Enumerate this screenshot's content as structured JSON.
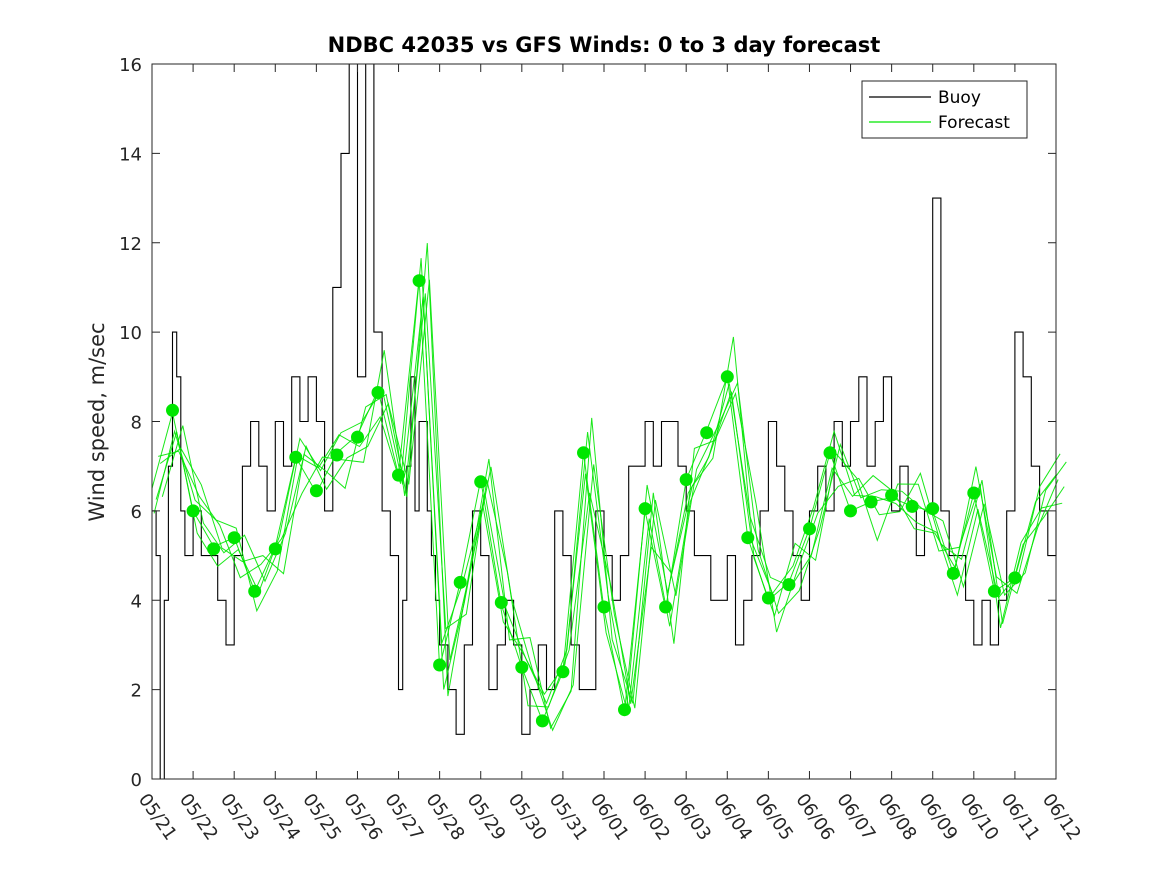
{
  "chart_data": {
    "type": "line",
    "title": "NDBC 42035 vs GFS Winds: 0 to 3 day forecast",
    "xlabel": "",
    "ylabel": "Wind speed, m/sec",
    "ylim": [
      0,
      16
    ],
    "yticks": [
      0,
      2,
      4,
      6,
      8,
      10,
      12,
      14,
      16
    ],
    "xticks": [
      "05/21",
      "05/22",
      "05/23",
      "05/24",
      "05/25",
      "05/26",
      "05/27",
      "05/28",
      "05/29",
      "05/30",
      "05/31",
      "06/01",
      "06/02",
      "06/03",
      "06/04",
      "06/05",
      "06/06",
      "06/07",
      "06/08",
      "06/09",
      "06/10",
      "06/11",
      "06/12"
    ],
    "xlim_days": [
      0,
      22
    ],
    "legend": {
      "position": "top-right",
      "entries": [
        {
          "name": "Buoy",
          "color": "#000000"
        },
        {
          "name": "Forecast",
          "color": "#00e600"
        }
      ]
    },
    "colors": {
      "buoy": "#000000",
      "forecast": "#00e600",
      "analysis_dots": "#00e600"
    },
    "series": [
      {
        "name": "Buoy",
        "x_days": [
          0,
          0.1,
          0.2,
          0.3,
          0.4,
          0.5,
          0.6,
          0.7,
          0.8,
          0.9,
          1.0,
          1.2,
          1.4,
          1.6,
          1.8,
          2.0,
          2.2,
          2.4,
          2.6,
          2.8,
          3.0,
          3.2,
          3.4,
          3.6,
          3.8,
          4.0,
          4.2,
          4.4,
          4.6,
          4.8,
          5.0,
          5.2,
          5.4,
          5.6,
          5.8,
          6.0,
          6.1,
          6.2,
          6.3,
          6.4,
          6.5,
          6.6,
          6.7,
          6.8,
          6.9,
          7.0,
          7.2,
          7.4,
          7.6,
          7.8,
          8.0,
          8.2,
          8.4,
          8.6,
          8.8,
          9.0,
          9.2,
          9.4,
          9.6,
          9.8,
          10.0,
          10.2,
          10.4,
          10.6,
          10.8,
          11.0,
          11.2,
          11.4,
          11.6,
          11.8,
          12.0,
          12.2,
          12.4,
          12.6,
          12.8,
          13.0,
          13.2,
          13.4,
          13.6,
          13.8,
          14.0,
          14.2,
          14.4,
          14.6,
          14.8,
          15.0,
          15.2,
          15.4,
          15.6,
          15.8,
          16.0,
          16.2,
          16.4,
          16.6,
          16.8,
          17.0,
          17.2,
          17.4,
          17.6,
          17.8,
          18.0,
          18.2,
          18.4,
          18.6,
          18.8,
          19.0,
          19.2,
          19.4,
          19.6,
          19.8,
          20.0,
          20.2,
          20.4,
          20.6,
          20.8,
          21.0,
          21.2,
          21.4,
          21.6,
          21.8,
          22.0
        ],
        "values": [
          6,
          5,
          0,
          4,
          7,
          10,
          9,
          6,
          5,
          5,
          6,
          5,
          5,
          4,
          3,
          5,
          7,
          8,
          7,
          6,
          8,
          7,
          9,
          8,
          9,
          8,
          6,
          11,
          14,
          16,
          9,
          16,
          10,
          6,
          5,
          2,
          4,
          7,
          9,
          6,
          8,
          8,
          6,
          5,
          4,
          3,
          2,
          1,
          3,
          6,
          5,
          2,
          3,
          4,
          3,
          1,
          2,
          3,
          2,
          6,
          5,
          3,
          2,
          2,
          6,
          5,
          4,
          5,
          7,
          7,
          8,
          7,
          8,
          8,
          7,
          6,
          5,
          5,
          4,
          4,
          5,
          3,
          4,
          5,
          6,
          8,
          7,
          6,
          5,
          4,
          6,
          7,
          6,
          8,
          7,
          8,
          9,
          7,
          8,
          9,
          6,
          7,
          6,
          5,
          6,
          13,
          6,
          5,
          5,
          4,
          3,
          4,
          3,
          4,
          6,
          10,
          9,
          7,
          6,
          5,
          6
        ]
      },
      {
        "name": "Forecast",
        "x_days": [
          0,
          0.5,
          1,
          1.5,
          2,
          2.5,
          3,
          3.5,
          4,
          4.5,
          5,
          5.5,
          6,
          6.5,
          7,
          7.5,
          8,
          8.5,
          9,
          9.5,
          10,
          10.5,
          11,
          11.5,
          12,
          12.5,
          13,
          13.5,
          14,
          14.5,
          15,
          15.5,
          16,
          16.5,
          17,
          17.5,
          18,
          18.5,
          19,
          19.5,
          20,
          20.5,
          21,
          21.5,
          22
        ],
        "values": [
          6.5,
          8.2,
          6.0,
          5.2,
          5.4,
          4.2,
          5.2,
          7.2,
          6.4,
          7.3,
          7.7,
          8.7,
          6.8,
          11.2,
          2.5,
          4.4,
          6.7,
          3.9,
          2.5,
          1.3,
          2.4,
          7.3,
          3.8,
          1.5,
          6.0,
          3.8,
          6.7,
          7.8,
          9.0,
          5.4,
          4.0,
          4.4,
          5.6,
          7.3,
          6.0,
          6.2,
          6.3,
          6.1,
          6.0,
          4.6,
          6.4,
          4.2,
          4.5,
          6.2,
          6.8
        ]
      }
    ],
    "analysis_points": {
      "x_days": [
        0.5,
        1,
        1.5,
        2,
        2.5,
        3,
        3.5,
        4,
        4.5,
        5,
        5.5,
        6,
        6.5,
        7,
        7.5,
        8,
        8.5,
        9,
        9.5,
        10,
        10.5,
        11,
        11.5,
        12,
        12.5,
        13,
        13.5,
        14,
        14.5,
        15,
        15.5,
        16,
        16.5,
        17,
        17.5,
        18,
        18.5,
        19,
        19.5,
        20,
        20.5,
        21
      ],
      "values": [
        8.25,
        6.0,
        5.15,
        5.4,
        4.2,
        5.15,
        7.2,
        6.45,
        7.25,
        7.65,
        8.65,
        6.8,
        11.15,
        2.55,
        4.4,
        6.65,
        3.95,
        2.5,
        1.3,
        2.4,
        7.3,
        3.85,
        1.55,
        6.05,
        3.85,
        6.7,
        7.75,
        9.0,
        5.4,
        4.05,
        4.35,
        5.6,
        7.3,
        6.0,
        6.2,
        6.35,
        6.1,
        6.05,
        4.6,
        6.4,
        4.2,
        4.5
      ]
    }
  }
}
